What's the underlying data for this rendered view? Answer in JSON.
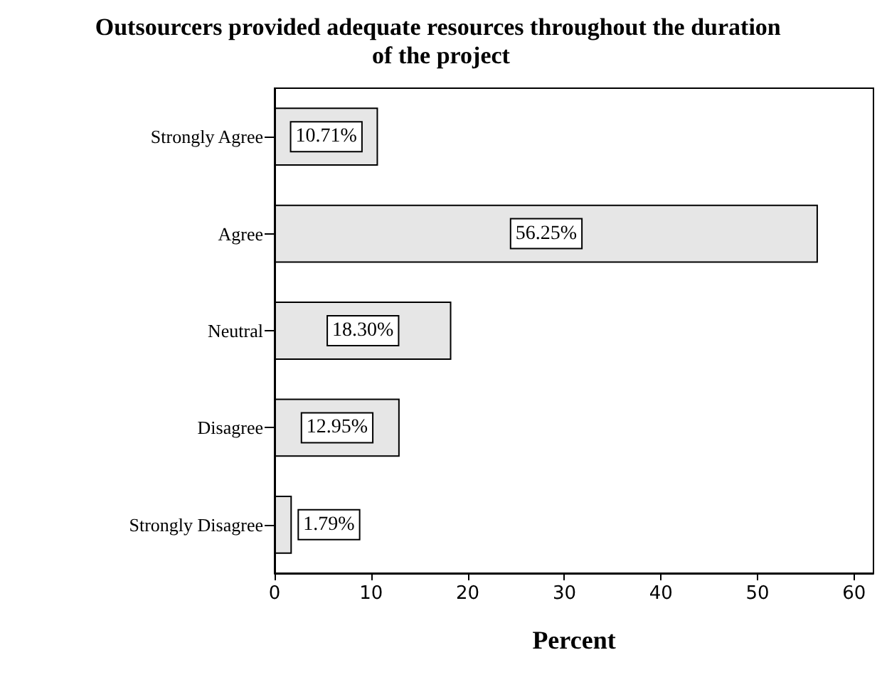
{
  "chart_data": {
    "type": "bar",
    "orientation": "horizontal",
    "title": "Outsourcers provided adequate resources throughout the duration of the project",
    "xlabel": "Percent",
    "categories": [
      "Strongly Agree",
      "Agree",
      "Neutral",
      "Disagree",
      "Strongly Disagree"
    ],
    "values": [
      10.71,
      56.25,
      18.3,
      12.95,
      1.79
    ],
    "value_labels": [
      "10.71%",
      "56.25%",
      "18.30%",
      "12.95%",
      "1.79%"
    ],
    "color": "#e6e6e6",
    "xlim": [
      0,
      62
    ],
    "xticks": [
      0,
      10,
      20,
      30,
      40,
      50,
      60
    ],
    "grid": false
  }
}
